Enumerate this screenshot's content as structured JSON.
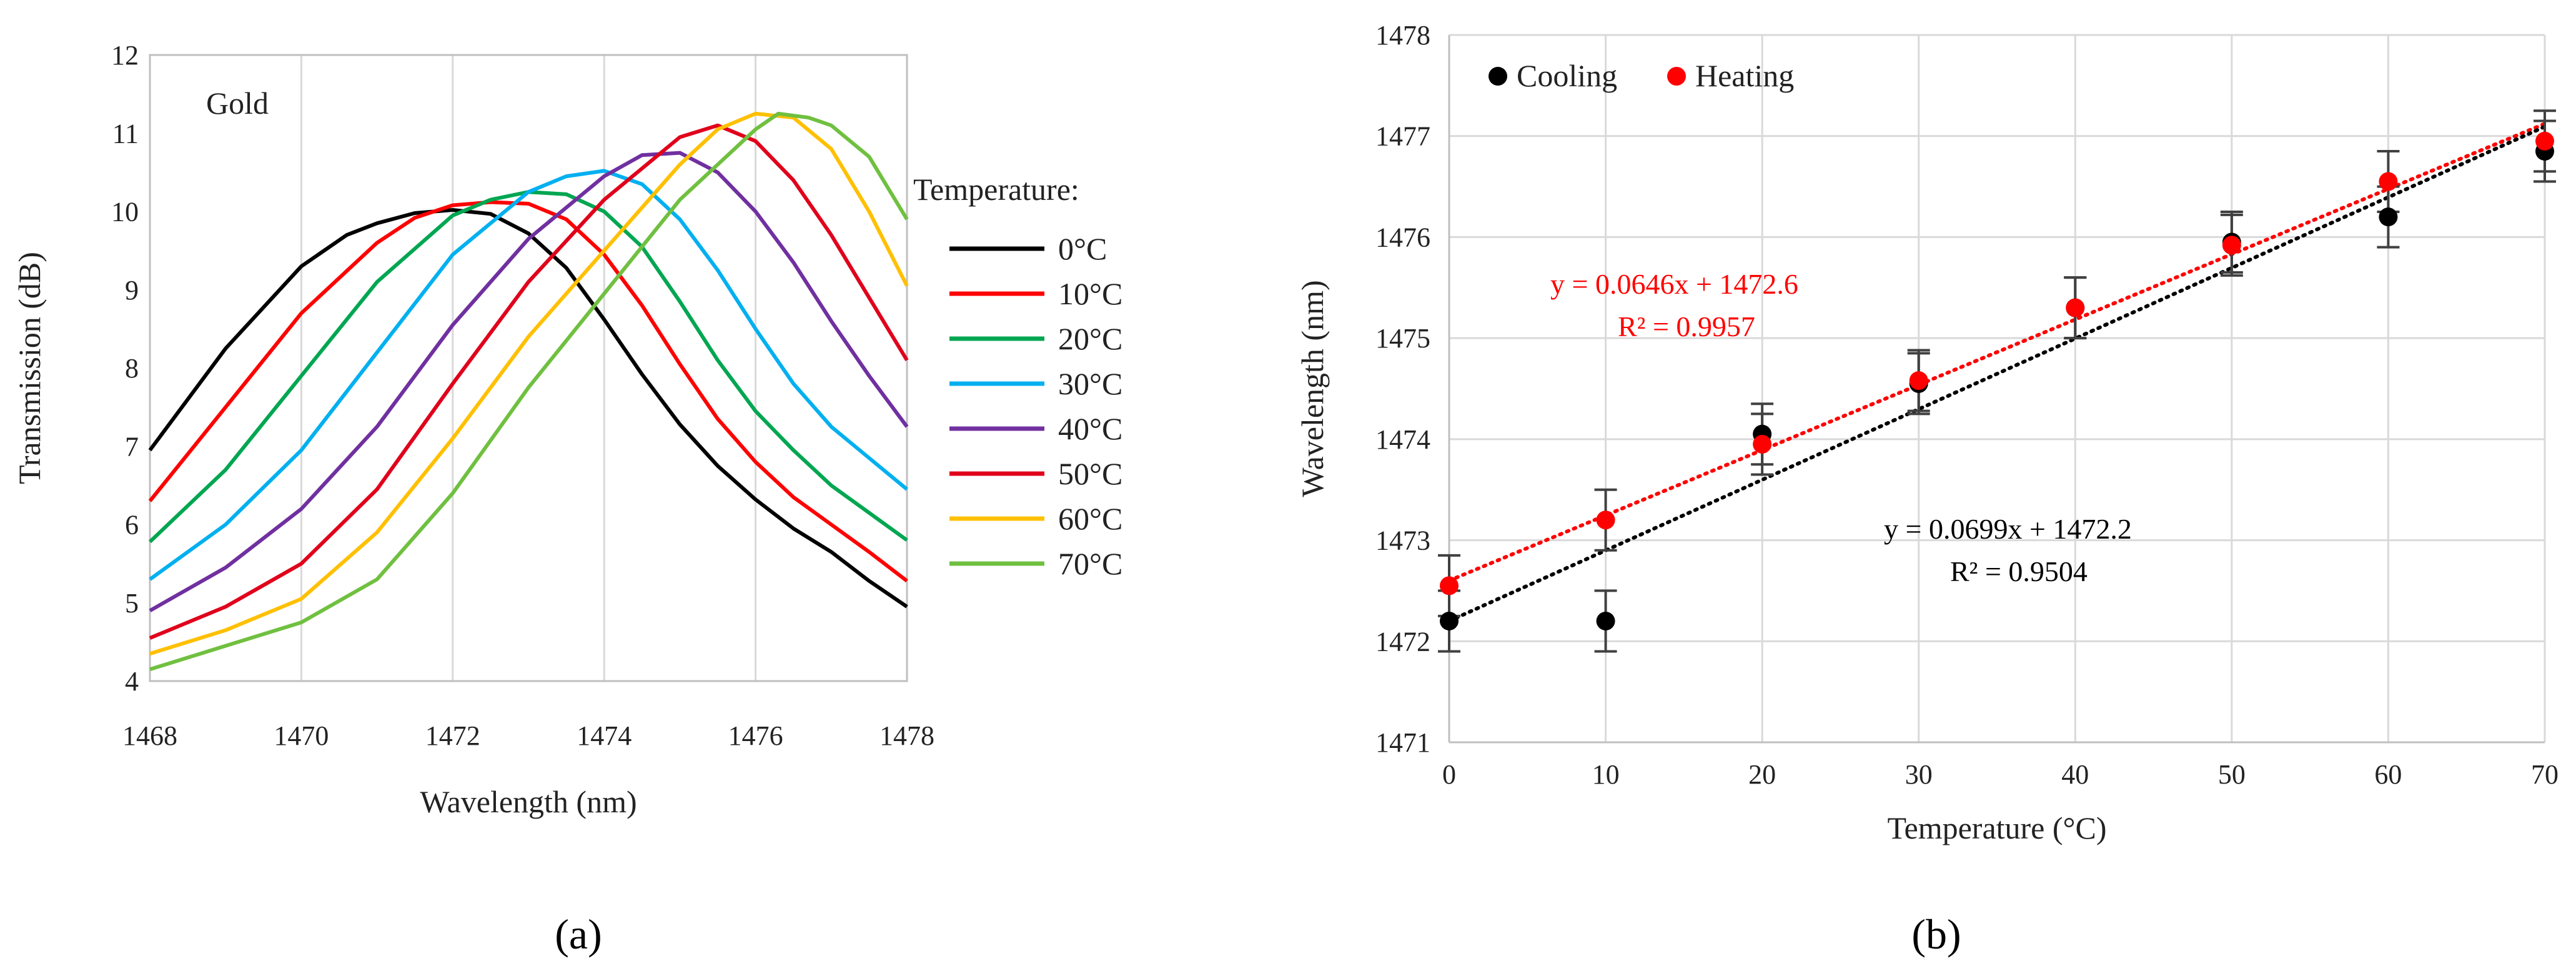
{
  "panel_labels": [
    "(a)",
    "(b)"
  ],
  "chart_data": [
    {
      "type": "line",
      "annotation": "Gold",
      "xlabel": "Wavelength (nm)",
      "ylabel": "Transmission (dB)",
      "xlim": [
        1468,
        1478
      ],
      "ylim": [
        4,
        12
      ],
      "xticks": [
        "1468",
        "1470",
        "1472",
        "1474",
        "1476",
        "1478"
      ],
      "yticks": [
        "4",
        "5",
        "6",
        "7",
        "8",
        "9",
        "10",
        "11",
        "12"
      ],
      "grid": "vertical",
      "legend_title": "Temperature:",
      "legend_position": "right",
      "series": [
        {
          "name": "0°C",
          "color": "#000000",
          "x": [
            1468,
            1469,
            1470,
            1470.6,
            1471,
            1471.5,
            1472,
            1472.5,
            1473,
            1473.5,
            1474,
            1474.5,
            1475,
            1475.5,
            1476,
            1476.5,
            1477,
            1477.5,
            1478
          ],
          "y": [
            6.95,
            8.25,
            9.3,
            9.7,
            9.85,
            9.98,
            10.02,
            9.97,
            9.72,
            9.28,
            8.62,
            7.92,
            7.28,
            6.75,
            6.32,
            5.95,
            5.65,
            5.28,
            4.95
          ]
        },
        {
          "name": "10°C",
          "color": "#ff0000",
          "x": [
            1468,
            1469,
            1470,
            1471,
            1471.5,
            1472,
            1472.5,
            1473,
            1473.5,
            1474,
            1474.5,
            1475,
            1475.5,
            1476,
            1476.5,
            1477,
            1477.5,
            1478
          ],
          "y": [
            6.3,
            7.5,
            8.7,
            9.6,
            9.92,
            10.08,
            10.12,
            10.1,
            9.9,
            9.45,
            8.8,
            8.05,
            7.35,
            6.8,
            6.35,
            6.0,
            5.65,
            5.28
          ]
        },
        {
          "name": "20°C",
          "color": "#00a651",
          "x": [
            1468,
            1469,
            1470,
            1471,
            1472,
            1472.5,
            1473,
            1473.5,
            1474,
            1474.5,
            1475,
            1475.5,
            1476,
            1476.5,
            1477,
            1477.5,
            1478
          ],
          "y": [
            5.78,
            6.7,
            7.9,
            9.1,
            9.95,
            10.15,
            10.25,
            10.22,
            10.0,
            9.55,
            8.85,
            8.1,
            7.45,
            6.95,
            6.5,
            6.15,
            5.8
          ]
        },
        {
          "name": "30°C",
          "color": "#00b0f0",
          "x": [
            1468,
            1469,
            1470,
            1471,
            1472,
            1473,
            1473.5,
            1474,
            1474.5,
            1475,
            1475.5,
            1476,
            1476.5,
            1477,
            1477.5,
            1478
          ],
          "y": [
            5.3,
            6.0,
            6.95,
            8.2,
            9.45,
            10.25,
            10.45,
            10.52,
            10.35,
            9.9,
            9.25,
            8.5,
            7.8,
            7.25,
            6.85,
            6.45
          ]
        },
        {
          "name": "40°C",
          "color": "#7030a0",
          "x": [
            1468,
            1469,
            1470,
            1471,
            1472,
            1473,
            1474,
            1474.5,
            1475,
            1475.5,
            1476,
            1476.5,
            1477,
            1477.5,
            1478
          ],
          "y": [
            4.9,
            5.45,
            6.2,
            7.25,
            8.55,
            9.65,
            10.45,
            10.72,
            10.75,
            10.5,
            10.0,
            9.35,
            8.6,
            7.9,
            7.25
          ]
        },
        {
          "name": "50°C",
          "color": "#e0001b",
          "x": [
            1468,
            1469,
            1470,
            1471,
            1472,
            1473,
            1474,
            1475,
            1475.5,
            1476,
            1476.5,
            1477,
            1477.5,
            1478
          ],
          "y": [
            4.55,
            4.95,
            5.5,
            6.45,
            7.8,
            9.1,
            10.15,
            10.95,
            11.1,
            10.9,
            10.4,
            9.7,
            8.9,
            8.1
          ]
        },
        {
          "name": "60°C",
          "color": "#ffc000",
          "x": [
            1468,
            1469,
            1470,
            1471,
            1472,
            1473,
            1474,
            1475,
            1475.5,
            1476,
            1476.5,
            1477,
            1477.5,
            1478
          ],
          "y": [
            4.35,
            4.65,
            5.05,
            5.9,
            7.1,
            8.4,
            9.5,
            10.6,
            11.05,
            11.25,
            11.2,
            10.8,
            10.0,
            9.05
          ]
        },
        {
          "name": "70°C",
          "color": "#70c040",
          "x": [
            1468,
            1469,
            1470,
            1471,
            1472,
            1473,
            1474,
            1475,
            1476,
            1476.3,
            1476.7,
            1477,
            1477.5,
            1478
          ],
          "y": [
            4.15,
            4.45,
            4.75,
            5.3,
            6.4,
            7.75,
            8.95,
            10.15,
            11.05,
            11.25,
            11.2,
            11.1,
            10.7,
            9.9
          ]
        }
      ]
    },
    {
      "type": "scatter",
      "xlabel": "Temperature (°C)",
      "ylabel": "Wavelength (nm)",
      "xlim": [
        0,
        70
      ],
      "ylim": [
        1471,
        1478
      ],
      "xticks": [
        "0",
        "10",
        "20",
        "30",
        "40",
        "50",
        "60",
        "70"
      ],
      "yticks": [
        "1471",
        "1472",
        "1473",
        "1474",
        "1475",
        "1476",
        "1477",
        "1478"
      ],
      "grid": "both",
      "legend_position": "top-left",
      "series": [
        {
          "name": "Cooling",
          "color": "#000000",
          "x": [
            0,
            10,
            20,
            30,
            40,
            50,
            60,
            70
          ],
          "y": [
            1472.2,
            1472.2,
            1474.05,
            1474.55,
            1475.3,
            1475.95,
            1476.2,
            1476.85
          ],
          "error": 0.3
        },
        {
          "name": "Heating",
          "color": "#ff0000",
          "x": [
            0,
            10,
            20,
            30,
            40,
            50,
            60,
            70
          ],
          "y": [
            1472.55,
            1473.2,
            1473.95,
            1474.58,
            1475.3,
            1475.92,
            1476.55,
            1476.95
          ],
          "error": 0.3
        }
      ],
      "trendlines": [
        {
          "color": "#ff0000",
          "slope": 0.0646,
          "intercept": 1472.6,
          "equation": "y = 0.0646x + 1472.6",
          "r2": "R² = 0.9957"
        },
        {
          "color": "#000000",
          "slope": 0.0699,
          "intercept": 1472.2,
          "equation": "y = 0.0699x + 1472.2",
          "r2": "R² = 0.9504"
        }
      ]
    }
  ]
}
